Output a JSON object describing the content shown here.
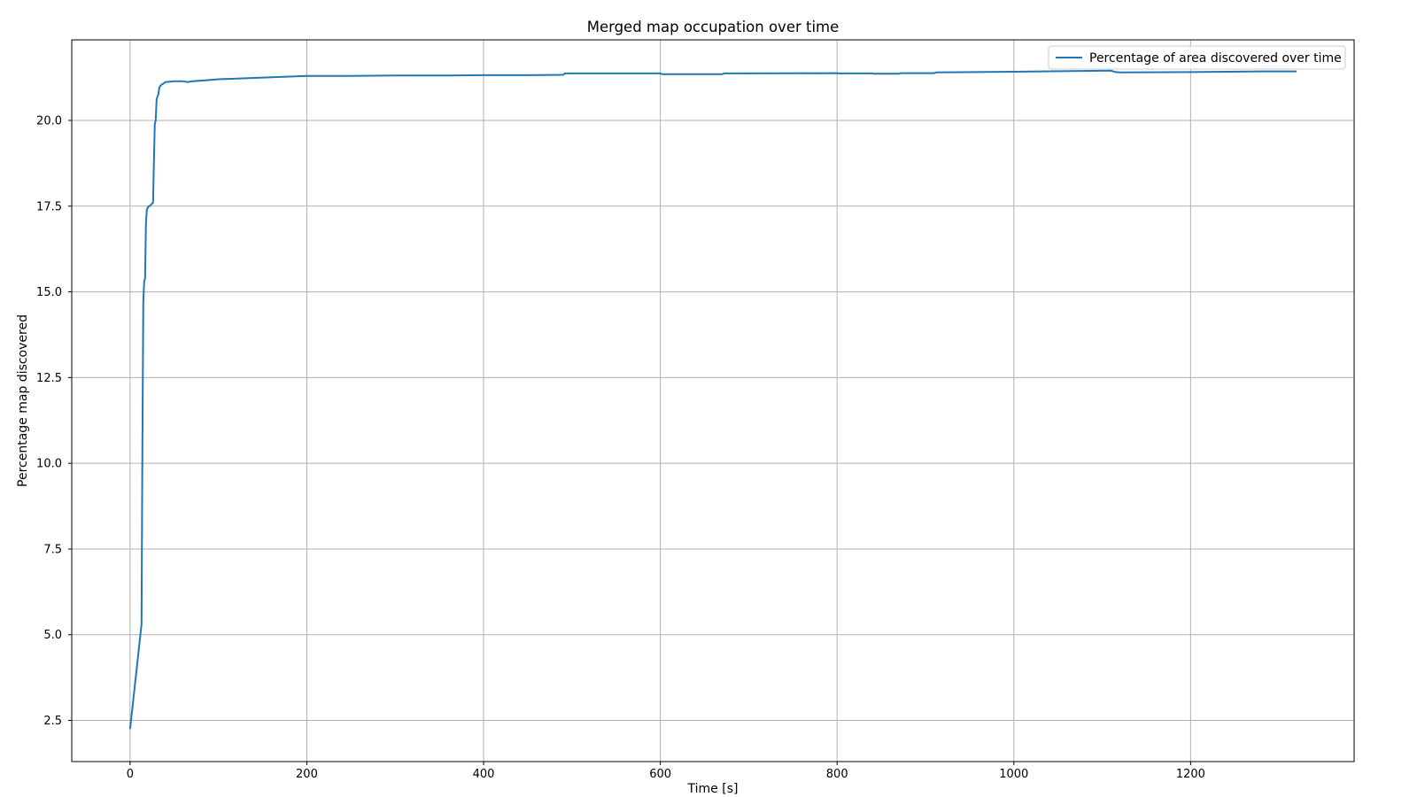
{
  "chart_data": {
    "type": "line",
    "title": "Merged map occupation over time",
    "xlabel": "Time [s]",
    "ylabel": "Percentage map discovered",
    "xlim": [
      -66,
      1385
    ],
    "ylim": [
      1.3,
      22.35
    ],
    "xticks": [
      0,
      200,
      400,
      600,
      800,
      1000,
      1200
    ],
    "xtick_labels": [
      "0",
      "200",
      "400",
      "600",
      "800",
      "1000",
      "1200"
    ],
    "yticks": [
      2.5,
      5.0,
      7.5,
      10.0,
      12.5,
      15.0,
      17.5,
      20.0
    ],
    "ytick_labels": [
      "2.5",
      "5.0",
      "7.5",
      "10.0",
      "12.5",
      "15.0",
      "17.5",
      "20.0"
    ],
    "grid": true,
    "legend_position": "top-right",
    "series": [
      {
        "name": "Percentage of area discovered over time",
        "color": "#1f77b4",
        "x": [
          0,
          13,
          14,
          15,
          16,
          17,
          18,
          19,
          20,
          21,
          22,
          26,
          27,
          28,
          29,
          30,
          31,
          32,
          33,
          34,
          36,
          38,
          40,
          45,
          50,
          60,
          65,
          70,
          80,
          100,
          150,
          200,
          250,
          300,
          350,
          400,
          450,
          490,
          492,
          600,
          602,
          670,
          672,
          800,
          802,
          840,
          842,
          870,
          872,
          910,
          912,
          1000,
          1110,
          1115,
          1120,
          1200,
          1280,
          1320
        ],
        "y": [
          2.25,
          5.3,
          10.5,
          14.7,
          15.3,
          15.4,
          17.0,
          17.4,
          17.45,
          17.5,
          17.5,
          17.6,
          18.8,
          19.9,
          20.0,
          20.6,
          20.7,
          20.75,
          20.95,
          21.0,
          21.05,
          21.08,
          21.12,
          21.13,
          21.14,
          21.14,
          21.12,
          21.14,
          21.16,
          21.2,
          21.25,
          21.3,
          21.3,
          21.31,
          21.31,
          21.32,
          21.32,
          21.33,
          21.37,
          21.37,
          21.35,
          21.35,
          21.37,
          21.38,
          21.37,
          21.37,
          21.36,
          21.36,
          21.38,
          21.38,
          21.4,
          21.42,
          21.45,
          21.41,
          21.4,
          21.41,
          21.43,
          21.43
        ]
      }
    ]
  }
}
